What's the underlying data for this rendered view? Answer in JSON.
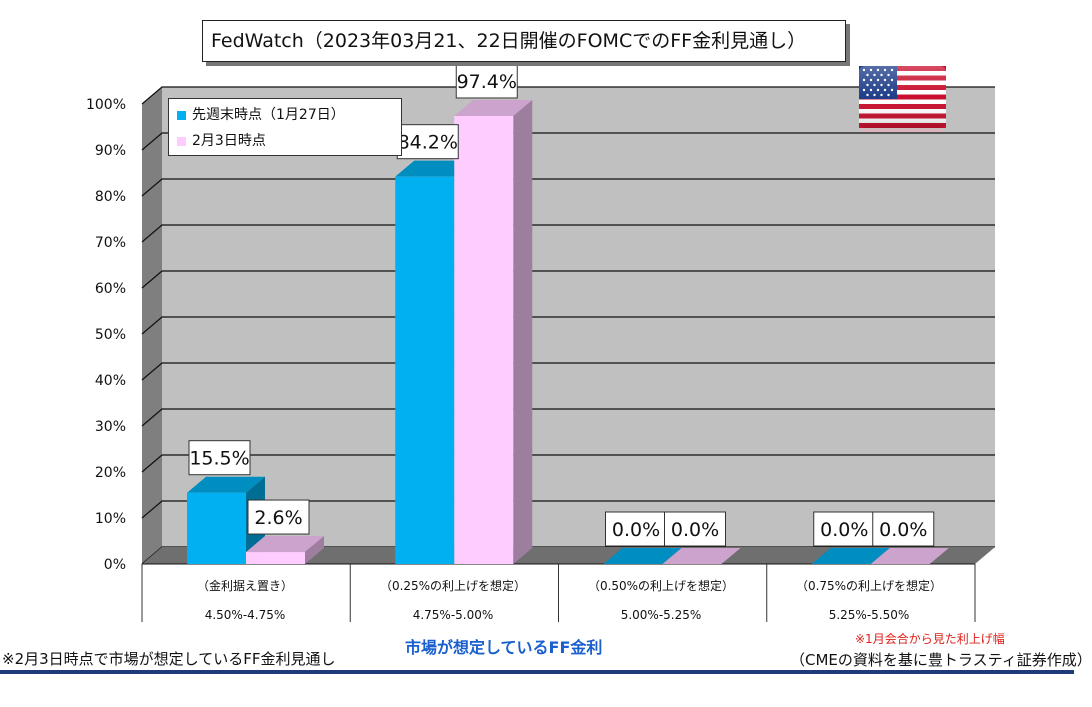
{
  "title": "FedWatch（2023年03月21、22日開催のFOMCでのFF金利見通し）",
  "legend": [
    {
      "label": "先週末時点（1月27日）",
      "color": "#00b0f0"
    },
    {
      "label": "2月3日時点",
      "color": "#ffccff"
    }
  ],
  "flag_icon": "us-flag-icon",
  "chart_data": {
    "type": "bar",
    "y_ticks": [
      "0%",
      "10%",
      "20%",
      "30%",
      "40%",
      "50%",
      "60%",
      "70%",
      "80%",
      "90%",
      "100%"
    ],
    "ylim": [
      0,
      100
    ],
    "grid": true,
    "legend_position": "top-left",
    "categories": [
      {
        "line1": "（金利据え置き）",
        "line2": "4.50%-4.75%"
      },
      {
        "line1": "（0.25%の利上げを想定）",
        "line2": "4.75%-5.00%"
      },
      {
        "line1": "（0.50%の利上げを想定）",
        "line2": "5.00%-5.25%"
      },
      {
        "line1": "（0.75%の利上げを想定）",
        "line2": "5.25%-5.50%"
      }
    ],
    "series": [
      {
        "name": "先週末時点（1月27日）",
        "color": "#00b0f0",
        "values": [
          15.5,
          84.2,
          0.0,
          0.0
        ],
        "labels": [
          "15.5%",
          "84.2%",
          "0.0%",
          "0.0%"
        ]
      },
      {
        "name": "2月3日時点",
        "color": "#ffccff",
        "values": [
          2.6,
          97.4,
          0.0,
          0.0
        ],
        "labels": [
          "2.6%",
          "97.4%",
          "0.0%",
          "0.0%"
        ]
      }
    ]
  },
  "footer": {
    "left": "※2月3日時点で市場が想定しているFF金利見通し",
    "center": "市場が想定しているFF金利",
    "note": "※1月会合から見た利上げ幅",
    "source": "（CMEの資料を基に豊トラスティ証券作成）"
  }
}
